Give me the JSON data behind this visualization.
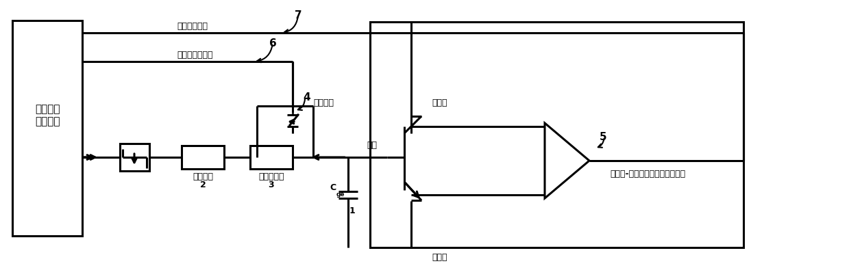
{
  "bg_color": "#ffffff",
  "line_color": "#000000",
  "lw": 2.2,
  "fig_w": 12.39,
  "fig_h": 3.92,
  "labels": {
    "short_circuit_signal": "短路判断信号",
    "soft_off_signal": "软关断命令信号",
    "gate_drive_line1": "门极驱动",
    "gate_drive_line2": "逻辑电路",
    "bypass_switch": "旁路开关",
    "gate": "门极",
    "gate_resistor": "门极电阻",
    "soft_resistor": "软关断电阻",
    "collector": "集电极",
    "emitter": "发射极",
    "compare_circuit": "集电极-发射极电压测量比较电路"
  },
  "font_size": 10,
  "font_size_small": 9,
  "font_bold": "bold"
}
